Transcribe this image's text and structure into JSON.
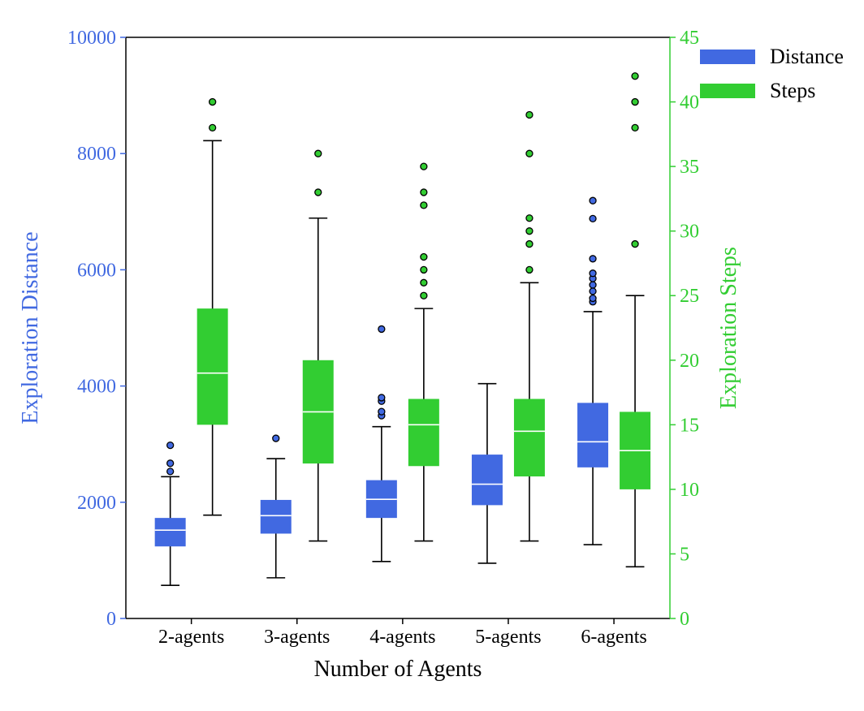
{
  "chart_data": {
    "type": "box",
    "xlabel": "Number of Agents",
    "categories": [
      "2-agents",
      "3-agents",
      "4-agents",
      "5-agents",
      "6-agents"
    ],
    "y_left": {
      "label": "Exploration Distance",
      "lim": [
        0,
        10000
      ],
      "ticks": [
        0,
        2000,
        4000,
        6000,
        8000,
        10000
      ],
      "color": "#4169e1"
    },
    "y_right": {
      "label": "Exploration Steps",
      "lim": [
        0,
        45
      ],
      "ticks": [
        0,
        5,
        10,
        15,
        20,
        25,
        30,
        35,
        40,
        45
      ],
      "color": "#32cd32"
    },
    "legend": {
      "position": "top-right"
    },
    "series": [
      {
        "name": "Distance",
        "axis": "left",
        "color": "#4169e1",
        "boxes": [
          {
            "whislo": 570,
            "q1": 1240,
            "med": 1520,
            "q3": 1730,
            "whishi": 2440,
            "fliers": [
              2530,
              2670,
              2980
            ]
          },
          {
            "whislo": 700,
            "q1": 1460,
            "med": 1770,
            "q3": 2040,
            "whishi": 2750,
            "fliers": [
              3100
            ]
          },
          {
            "whislo": 980,
            "q1": 1730,
            "med": 2050,
            "q3": 2380,
            "whishi": 3300,
            "fliers": [
              3490,
              3560,
              3740,
              3800,
              4980
            ]
          },
          {
            "whislo": 950,
            "q1": 1950,
            "med": 2310,
            "q3": 2820,
            "whishi": 4040,
            "fliers": []
          },
          {
            "whislo": 1270,
            "q1": 2600,
            "med": 3040,
            "q3": 3710,
            "whishi": 5280,
            "fliers": [
              5450,
              5510,
              5630,
              5740,
              5850,
              5940,
              6190,
              6880,
              7190
            ]
          }
        ]
      },
      {
        "name": "Steps",
        "axis": "right",
        "color": "#32cd32",
        "boxes": [
          {
            "whislo": 8,
            "q1": 15,
            "med": 19,
            "q3": 24,
            "whishi": 37,
            "fliers": [
              38,
              40
            ]
          },
          {
            "whislo": 6,
            "q1": 12,
            "med": 16,
            "q3": 20,
            "whishi": 31,
            "fliers": [
              33,
              36
            ]
          },
          {
            "whislo": 6,
            "q1": 11.8,
            "med": 15,
            "q3": 17,
            "whishi": 24,
            "fliers": [
              25,
              26,
              27,
              28,
              32,
              33,
              35
            ]
          },
          {
            "whislo": 6,
            "q1": 11,
            "med": 14.5,
            "q3": 17,
            "whishi": 26,
            "fliers": [
              27,
              29,
              30,
              31,
              36,
              39
            ]
          },
          {
            "whislo": 4,
            "q1": 10,
            "med": 13,
            "q3": 16,
            "whishi": 25,
            "fliers": [
              29,
              38,
              40,
              42
            ]
          }
        ]
      }
    ]
  }
}
